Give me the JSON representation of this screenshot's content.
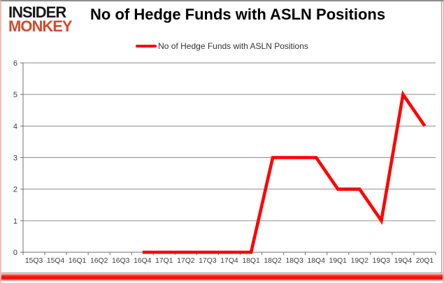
{
  "logo": {
    "line1": "INSIDER",
    "line2": "MONKEY"
  },
  "title": "No of Hedge Funds with ASLN Positions",
  "legend": {
    "label": "No of Hedge Funds with ASLN Positions"
  },
  "colors": {
    "line": "#fe0000",
    "logo_accent": "#d14a2f",
    "grid": "#8c8c8c",
    "axis": "#707070",
    "tick_text": "#3c3c3c",
    "bottom_bar": "#f70d03"
  },
  "chart_data": {
    "type": "line",
    "title": "No of Hedge Funds with ASLN Positions",
    "categories": [
      "15Q3",
      "15Q4",
      "16Q1",
      "16Q2",
      "16Q3",
      "16Q4",
      "17Q1",
      "17Q2",
      "17Q3",
      "17Q4",
      "18Q1",
      "18Q2",
      "18Q3",
      "18Q4",
      "19Q1",
      "19Q2",
      "19Q3",
      "19Q4",
      "20Q1"
    ],
    "series": [
      {
        "name": "No of Hedge Funds with ASLN Positions",
        "color": "#fe0000",
        "values": [
          null,
          null,
          null,
          null,
          null,
          0,
          0,
          0,
          0,
          0,
          0,
          3,
          3,
          3,
          2,
          2,
          1,
          5,
          4
        ]
      }
    ],
    "xlabel": "",
    "ylabel": "",
    "ylim": [
      0,
      6
    ],
    "ytick_interval": 1,
    "grid": "horizontal",
    "legend_position": "top-center"
  }
}
